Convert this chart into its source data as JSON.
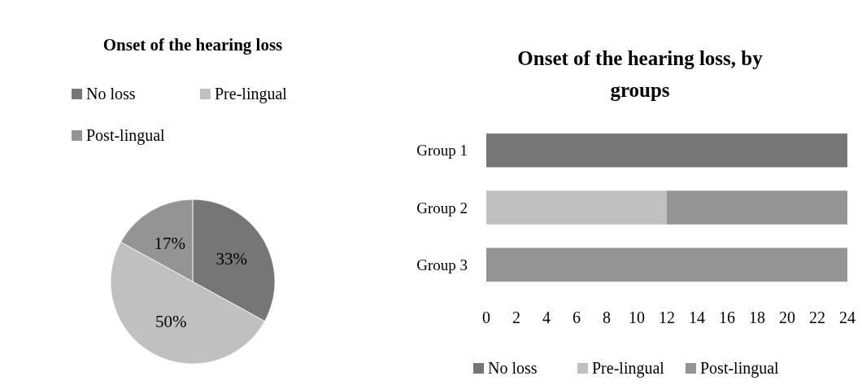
{
  "chart_data": [
    {
      "type": "pie",
      "title": "Onset of the hearing loss",
      "categories": [
        "No loss",
        "Pre-lingual",
        "Post-lingual"
      ],
      "values": [
        33,
        50,
        17
      ],
      "colors": [
        "#767676",
        "#c0c0c0",
        "#949494"
      ],
      "value_labels": [
        "33%",
        "50%",
        "17%"
      ],
      "legend": "top"
    },
    {
      "type": "bar",
      "title": "Onset of the hearing loss, by groups",
      "orientation": "horizontal",
      "stacked": true,
      "categories": [
        "Group 1",
        "Group 2",
        "Group 3"
      ],
      "series": [
        {
          "name": "No loss",
          "color": "#767676",
          "values": [
            24,
            0,
            0
          ]
        },
        {
          "name": "Pre-lingual",
          "color": "#c0c0c0",
          "values": [
            0,
            12,
            0
          ]
        },
        {
          "name": "Post-lingual",
          "color": "#949494",
          "values": [
            0,
            12,
            24
          ]
        }
      ],
      "xlim": [
        0,
        24
      ],
      "xticks": [
        0,
        2,
        4,
        6,
        8,
        10,
        12,
        14,
        16,
        18,
        20,
        22,
        24
      ],
      "legend": "bottom",
      "grid": false
    }
  ]
}
